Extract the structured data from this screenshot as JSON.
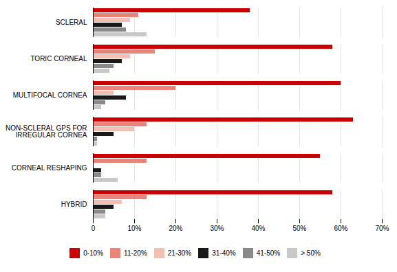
{
  "chart_data": {
    "type": "bar",
    "orientation": "horizontal",
    "categories": [
      "SCLERAL",
      "TORIC CORNEAL",
      "MULTIFOCAL CORNEA",
      "NON-SCLERAL GPS FOR\nIRREGULAR CORNEA",
      "CORNEAL RESHAPING",
      "HYBRID"
    ],
    "series": [
      {
        "name": "0-10%",
        "color": "#cc0000",
        "values": [
          38,
          58,
          60,
          63,
          55,
          58
        ]
      },
      {
        "name": "11-20%",
        "color": "#e8847a",
        "values": [
          11,
          15,
          20,
          13,
          13,
          13
        ]
      },
      {
        "name": "21-30%",
        "color": "#f2bfb5",
        "values": [
          9,
          9,
          5,
          10,
          0,
          7
        ]
      },
      {
        "name": "31-40%",
        "color": "#1a1a1a",
        "values": [
          7,
          7,
          8,
          5,
          2,
          5
        ]
      },
      {
        "name": "41-50%",
        "color": "#8a8a8a",
        "values": [
          8,
          5,
          3,
          1,
          2,
          3
        ]
      },
      {
        "name": "> 50%",
        "color": "#c8c8c8",
        "values": [
          13,
          4,
          2,
          1,
          6,
          3
        ]
      }
    ],
    "xlim": [
      0,
      70
    ],
    "xticks": [
      0,
      {
        "value": 10,
        "label": "10%"
      },
      {
        "value": 20,
        "label": "20%"
      },
      {
        "value": 30,
        "label": "30%"
      },
      {
        "value": 40,
        "label": "40%"
      },
      {
        "value": 50,
        "label": "50%"
      },
      {
        "value": 60,
        "label": "60%"
      },
      {
        "value": 70,
        "label": "70%"
      }
    ],
    "grid": true,
    "legend": "bottom"
  }
}
